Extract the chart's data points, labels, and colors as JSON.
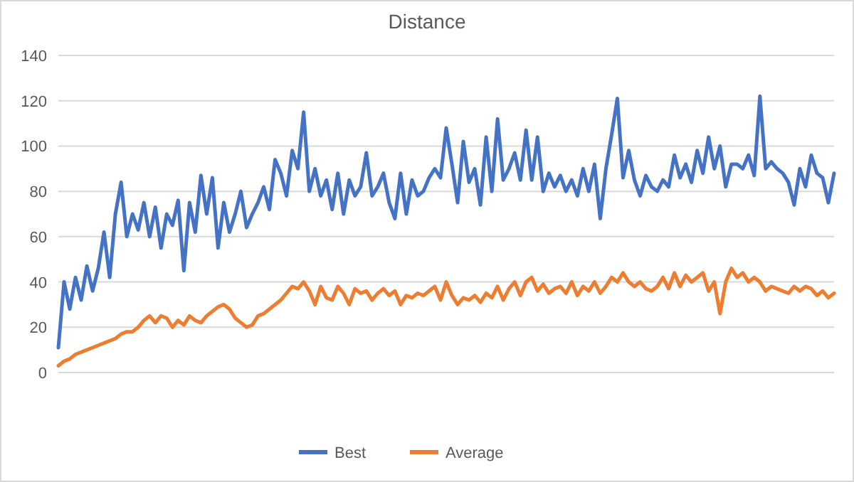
{
  "chart_data": {
    "type": "line",
    "title": "Distance",
    "categories": [
      null,
      null,
      null,
      null,
      null,
      null,
      null,
      null,
      null,
      null,
      null,
      null,
      null,
      null,
      null,
      null,
      null,
      null,
      null,
      null,
      null,
      null,
      null,
      null,
      null,
      null,
      null,
      null,
      null,
      null,
      null,
      null,
      null,
      null,
      null,
      null,
      null,
      null,
      null,
      null,
      null,
      null,
      null,
      null,
      null,
      null,
      null,
      null,
      null,
      null,
      null,
      null,
      null,
      null,
      null,
      null,
      null,
      null,
      null,
      null,
      null,
      null,
      null,
      null,
      null,
      null,
      null,
      null,
      null,
      null,
      null,
      null,
      null,
      null,
      null,
      null,
      null,
      null,
      null,
      null,
      null,
      null,
      null,
      null,
      null,
      null,
      null,
      null,
      null,
      null,
      null,
      null,
      null,
      null,
      null,
      null,
      null,
      null,
      null,
      null,
      null,
      null,
      null,
      null,
      null,
      null,
      null,
      null,
      null,
      null,
      null,
      null,
      null,
      null,
      null,
      null,
      null,
      null,
      null,
      null,
      null,
      null,
      null,
      null,
      null,
      null,
      null,
      null,
      null,
      null,
      null,
      null,
      null,
      null,
      null,
      null,
      null
    ],
    "series": [
      {
        "name": "Best",
        "color": "#4472c4",
        "values": [
          11,
          40,
          28,
          42,
          32,
          47,
          36,
          46,
          62,
          42,
          70,
          84,
          60,
          70,
          63,
          75,
          60,
          73,
          55,
          70,
          65,
          76,
          45,
          75,
          62,
          87,
          70,
          86,
          55,
          75,
          62,
          70,
          80,
          64,
          70,
          75,
          82,
          72,
          94,
          88,
          78,
          98,
          90,
          115,
          80,
          90,
          78,
          85,
          72,
          88,
          70,
          85,
          78,
          82,
          97,
          78,
          82,
          88,
          75,
          68,
          88,
          70,
          85,
          78,
          80,
          86,
          90,
          86,
          108,
          92,
          75,
          102,
          84,
          90,
          74,
          104,
          80,
          112,
          85,
          90,
          97,
          85,
          107,
          85,
          104,
          80,
          88,
          82,
          87,
          80,
          85,
          78,
          90,
          80,
          92,
          68,
          90,
          105,
          121,
          86,
          98,
          85,
          78,
          87,
          82,
          80,
          85,
          82,
          96,
          86,
          92,
          84,
          98,
          88,
          104,
          90,
          100,
          82,
          92,
          92,
          90,
          96,
          87,
          122,
          90,
          93,
          90,
          88,
          84,
          74,
          90,
          82,
          96,
          88,
          86,
          75,
          88
        ]
      },
      {
        "name": "Average",
        "color": "#ed7d31",
        "values": [
          3,
          5,
          6,
          8,
          9,
          10,
          11,
          12,
          13,
          14,
          15,
          17,
          18,
          18,
          20,
          23,
          25,
          22,
          25,
          24,
          20,
          23,
          21,
          25,
          23,
          22,
          25,
          27,
          29,
          30,
          28,
          24,
          22,
          20,
          21,
          25,
          26,
          28,
          30,
          32,
          35,
          38,
          37,
          40,
          36,
          30,
          38,
          33,
          32,
          38,
          35,
          30,
          37,
          35,
          36,
          32,
          35,
          37,
          34,
          36,
          30,
          34,
          33,
          35,
          34,
          36,
          38,
          32,
          40,
          34,
          30,
          33,
          32,
          34,
          31,
          35,
          33,
          38,
          32,
          37,
          40,
          34,
          40,
          42,
          36,
          39,
          35,
          37,
          38,
          35,
          40,
          34,
          38,
          36,
          40,
          35,
          38,
          42,
          40,
          44,
          40,
          38,
          40,
          37,
          36,
          38,
          42,
          37,
          44,
          38,
          43,
          40,
          42,
          44,
          36,
          40,
          26,
          40,
          46,
          42,
          44,
          40,
          42,
          40,
          36,
          38,
          37,
          36,
          35,
          38,
          36,
          38,
          37,
          34,
          36,
          33,
          35
        ]
      }
    ],
    "ylim": [
      0,
      140
    ],
    "yticks": [
      0,
      20,
      40,
      60,
      80,
      100,
      120,
      140
    ],
    "grid": "y",
    "legend": "bottom"
  }
}
